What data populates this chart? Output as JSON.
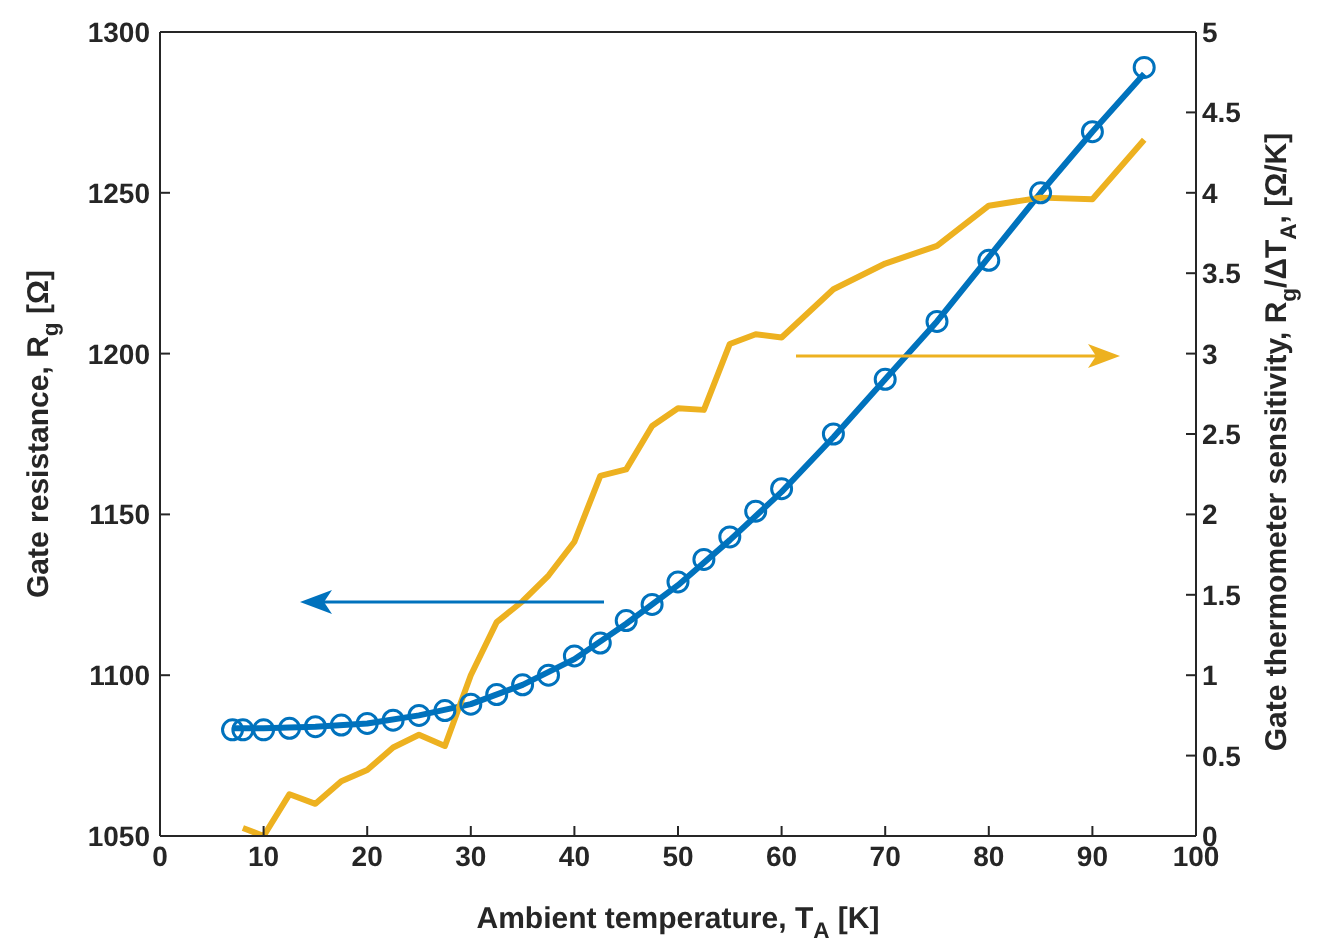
{
  "chart_data": {
    "type": "line",
    "xlabel": "Ambient temperature, T$_{A}$ [K]",
    "ylabel": "Gate resistance, R$_{g}$ [Ω]",
    "y2label": "Gate thermometer sensitivity, R$_{g}$/ΔT$_{A}$, [Ω/K]",
    "xlim": [
      0,
      100
    ],
    "xticks": [
      0,
      10,
      20,
      30,
      40,
      50,
      60,
      70,
      80,
      90,
      100
    ],
    "ylim": [
      1050,
      1300
    ],
    "yticks": [
      1050,
      1100,
      1150,
      1200,
      1250,
      1300
    ],
    "y2lim": [
      0,
      5
    ],
    "y2ticks": [
      0,
      0.5,
      1,
      1.5,
      2,
      2.5,
      3,
      3.5,
      4,
      4.5,
      5
    ],
    "grid": false,
    "legend": false,
    "series": [
      {
        "type": "scatter",
        "marker": "circle",
        "color": "#0072bd",
        "x": [
          7,
          8,
          10,
          12.5,
          15,
          17.5,
          20,
          22.5,
          25,
          27.5,
          30,
          32.5,
          35,
          37.5,
          40,
          42.5,
          45,
          47.5,
          50,
          52.5,
          55,
          57.5,
          60,
          65,
          70,
          75,
          80,
          85,
          90,
          95
        ],
        "values": [
          1083,
          1083,
          1083,
          1083.5,
          1084,
          1084.5,
          1085,
          1086,
          1087.5,
          1089,
          1091,
          1094,
          1097,
          1100,
          1106,
          1110,
          1117,
          1122,
          1129,
          1136,
          1143,
          1151,
          1158,
          1175,
          1192,
          1210,
          1229,
          1250,
          1269,
          1289
        ]
      },
      {
        "color": "#0072bd",
        "x": [
          7,
          10,
          15,
          20,
          25,
          30,
          35,
          40,
          45,
          50,
          55,
          60,
          65,
          70,
          75,
          80,
          85,
          90,
          95
        ],
        "values": [
          1083.5,
          1083.5,
          1084,
          1085,
          1087.5,
          1091,
          1097,
          1105,
          1116,
          1128,
          1142,
          1157,
          1174,
          1192,
          1210,
          1230,
          1250,
          1269,
          1287
        ]
      },
      {
        "axis": "y2",
        "color": "#edb120",
        "x": [
          8,
          10,
          12.5,
          15,
          17.5,
          20,
          22.5,
          25,
          27.5,
          30,
          32.5,
          35,
          37.5,
          40,
          42.5,
          45,
          47.5,
          50,
          52.5,
          55,
          57.5,
          60,
          65,
          70,
          75,
          80,
          85,
          90,
          95
        ],
        "values": [
          0.05,
          0,
          0.26,
          0.2,
          0.34,
          0.41,
          0.55,
          0.63,
          0.56,
          1.0,
          1.33,
          1.46,
          1.62,
          1.83,
          2.24,
          2.28,
          2.55,
          2.66,
          2.65,
          3.06,
          3.12,
          3.1,
          3.4,
          3.56,
          3.67,
          3.92,
          3.97,
          3.96,
          4.33
        ]
      }
    ]
  }
}
